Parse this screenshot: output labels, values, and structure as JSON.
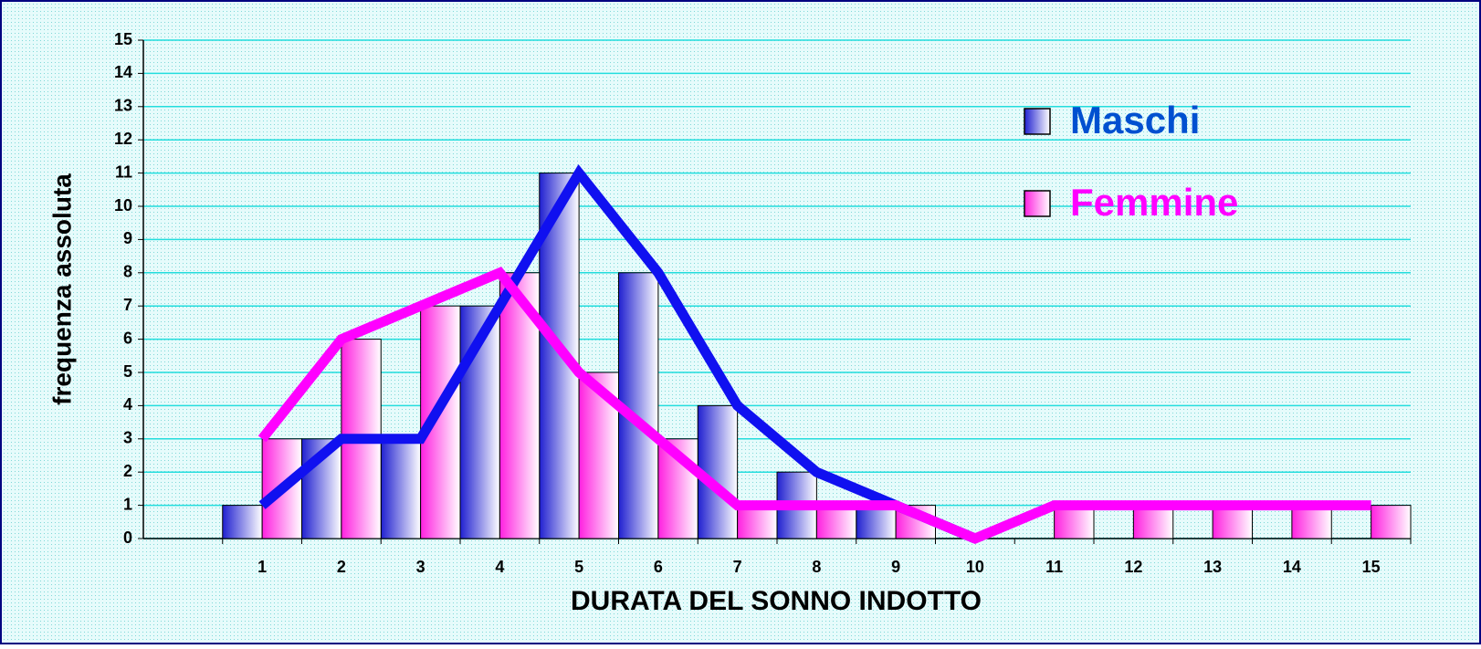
{
  "chart_data": {
    "type": "bar",
    "x_label": "DURATA DEL SONNO INDOTTO",
    "y_label": "frequenza assoluta",
    "categories": [
      null,
      "1",
      "2",
      "3",
      "4",
      "5",
      "6",
      "7",
      "8",
      "9",
      "10",
      "11",
      "12",
      "13",
      "14",
      "15"
    ],
    "series": [
      {
        "name": "Maschi",
        "color": "#1010f0",
        "values": [
          null,
          1,
          3,
          3,
          7,
          11,
          8,
          4,
          2,
          1,
          0,
          null,
          null,
          null,
          null,
          null
        ]
      },
      {
        "name": "Femmine",
        "color": "#ff00ff",
        "values": [
          null,
          3,
          6,
          7,
          8,
          5,
          3,
          1,
          1,
          1,
          0,
          1,
          1,
          1,
          1,
          1
        ]
      }
    ],
    "ylim": [
      0,
      15
    ],
    "yticks": [
      0,
      1,
      2,
      3,
      4,
      5,
      6,
      7,
      8,
      9,
      10,
      11,
      12,
      13,
      14,
      15
    ],
    "grid": true,
    "legend": "top-right"
  }
}
